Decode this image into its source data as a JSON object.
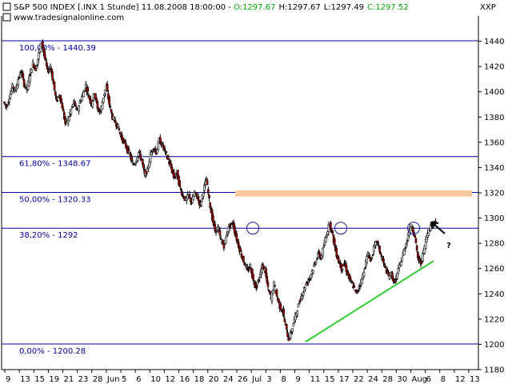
{
  "header": {
    "line1_prefix": "S&P 500 INDEX [.INX  1 Stunde] 11.08.2008 18:00:00  - ",
    "open": "O:1297.67",
    "high": "H:1297.67",
    "low": "L:1297.49",
    "close": "C:1297.52",
    "website": "www.tradesignalonline.com",
    "corner_label": "XXP"
  },
  "colors": {
    "fib_line": "#0000a0",
    "fib_text": "#0000a0",
    "close_text": "#00aa00",
    "trendline": "#33cc33",
    "zone": "#f9c9a2",
    "circle": "#1a1aa0",
    "candle_up": "#000000",
    "candle_down": "#b00000"
  },
  "chart_data": {
    "type": "candlestick",
    "title": "S&P 500 INDEX [.INX  1 Stunde]",
    "ylim": [
      1180,
      1460
    ],
    "yticks": [
      1180,
      1200,
      1220,
      1240,
      1260,
      1280,
      1300,
      1320,
      1340,
      1360,
      1380,
      1400,
      1420,
      1440
    ],
    "xticks": [
      "9",
      "13",
      "15",
      "19",
      "21",
      "23",
      "28",
      "Jun",
      "5",
      "6",
      "10",
      "12",
      "16",
      "18",
      "20",
      "24",
      "26",
      "Jul",
      "3",
      "8",
      "9",
      "11",
      "15",
      "17",
      "22",
      "24",
      "28",
      "30",
      "Aug",
      "6",
      "8",
      "12",
      "13"
    ],
    "fib_levels": [
      {
        "label": "100,00% - 1440.39",
        "value": 1440.39
      },
      {
        "label": "61,80% - 1348.67",
        "value": 1348.67
      },
      {
        "label": "50,00% - 1320.33",
        "value": 1320.33
      },
      {
        "label": "38,20% - 1292",
        "value": 1292
      },
      {
        "label": "0,00% - 1200.28",
        "value": 1200.28
      }
    ],
    "resistance_zone": {
      "from": 1317,
      "to": 1322
    },
    "trendline": {
      "from": {
        "price": 1202
      },
      "to": {
        "price": 1266
      }
    },
    "annotation": "?",
    "price_path": [
      1392,
      1388,
      1396,
      1404,
      1401,
      1410,
      1416,
      1406,
      1402,
      1414,
      1422,
      1418,
      1430,
      1440,
      1427,
      1416,
      1420,
      1406,
      1392,
      1398,
      1388,
      1375,
      1378,
      1386,
      1392,
      1384,
      1392,
      1398,
      1405,
      1396,
      1390,
      1400,
      1386,
      1384,
      1396,
      1404,
      1390,
      1380,
      1376,
      1372,
      1364,
      1360,
      1355,
      1350,
      1342,
      1345,
      1352,
      1346,
      1334,
      1338,
      1350,
      1356,
      1352,
      1362,
      1358,
      1352,
      1346,
      1340,
      1332,
      1336,
      1324,
      1318,
      1314,
      1318,
      1312,
      1320,
      1316,
      1310,
      1322,
      1330,
      1314,
      1300,
      1290,
      1292,
      1282,
      1278,
      1288,
      1294,
      1296,
      1286,
      1278,
      1270,
      1264,
      1258,
      1262,
      1250,
      1246,
      1252,
      1262,
      1258,
      1244,
      1236,
      1248,
      1238,
      1230,
      1226,
      1214,
      1204,
      1210,
      1220,
      1228,
      1236,
      1242,
      1248,
      1252,
      1258,
      1264,
      1272,
      1268,
      1278,
      1288,
      1296,
      1286,
      1274,
      1266,
      1260,
      1264,
      1256,
      1250,
      1246,
      1240,
      1246,
      1252,
      1262,
      1272,
      1266,
      1276,
      1282,
      1274,
      1266,
      1260,
      1254,
      1256,
      1248,
      1256,
      1264,
      1272,
      1280,
      1290,
      1294,
      1284,
      1268,
      1264,
      1274,
      1286,
      1292,
      1296,
      1297.5
    ]
  }
}
